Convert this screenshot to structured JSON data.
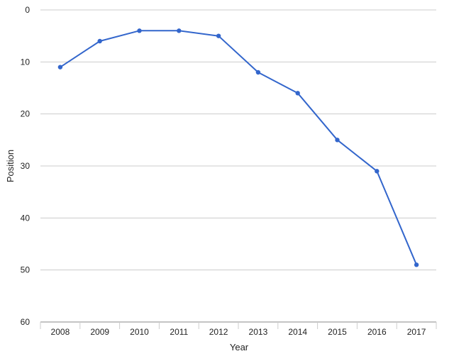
{
  "chart_data": {
    "type": "line",
    "xlabel": "Year",
    "ylabel": "Position",
    "y_reversed": true,
    "ylim": [
      0,
      60
    ],
    "y_ticks": [
      0,
      10,
      20,
      30,
      40,
      50,
      60
    ],
    "grid": "horizontal",
    "colors": {
      "line": "#3366cc",
      "grid": "#cccccc",
      "axis": "#888888"
    },
    "categories": [
      "2008",
      "2009",
      "2010",
      "2011",
      "2012",
      "2013",
      "2014",
      "2015",
      "2016",
      "2017"
    ],
    "series": [
      {
        "values": [
          11,
          6,
          4,
          4,
          5,
          12,
          16,
          25,
          31,
          49
        ]
      }
    ]
  }
}
